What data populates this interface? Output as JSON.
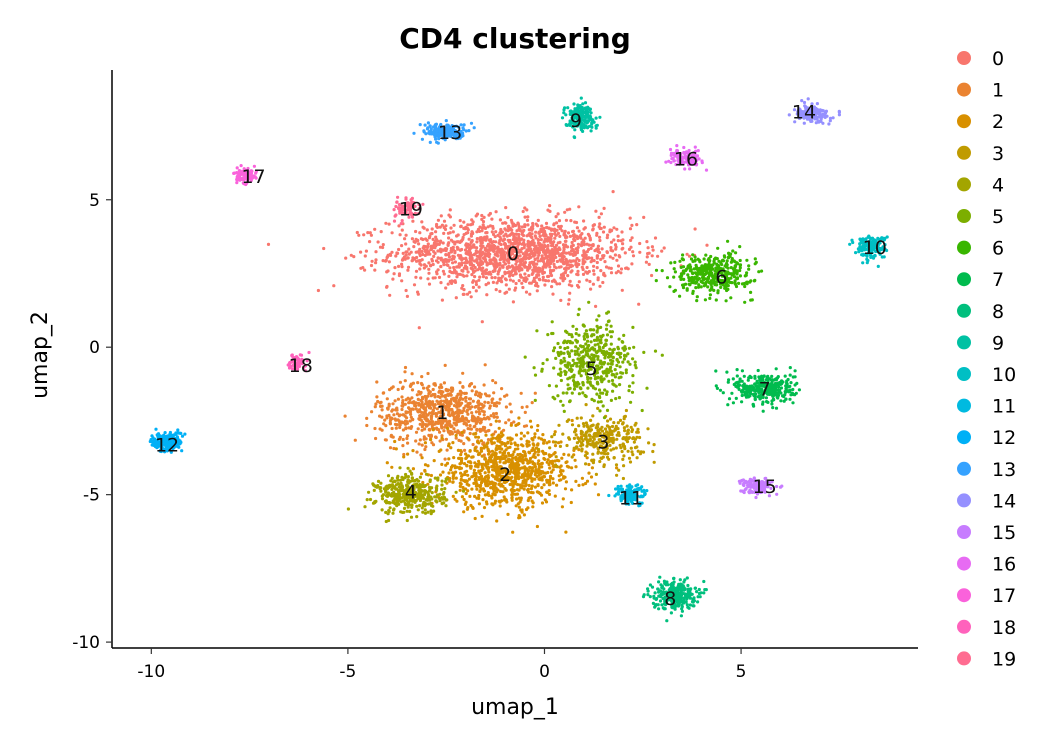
{
  "chart_data": {
    "type": "scatter",
    "title": "CD4 clustering",
    "xlabel": "umap_1",
    "ylabel": "umap_2",
    "xlim": [
      -11,
      9.5
    ],
    "ylim": [
      -10.2,
      9.4
    ],
    "x_ticks": [
      -10,
      -5,
      0,
      5
    ],
    "y_ticks": [
      -10,
      -5,
      0,
      5
    ],
    "grid": false,
    "legend": "right",
    "series": [
      {
        "name": "0",
        "color": "#F8766D",
        "center": [
          -0.8,
          3.2
        ],
        "label_pos": [
          -0.8,
          3.2
        ],
        "spread": [
          2.8,
          1.1
        ],
        "n": 1600
      },
      {
        "name": "1",
        "color": "#EA8331",
        "center": [
          -2.6,
          -2.2
        ],
        "label_pos": [
          -2.6,
          -2.2
        ],
        "spread": [
          1.5,
          1.0
        ],
        "n": 700
      },
      {
        "name": "2",
        "color": "#D89000",
        "center": [
          -1.0,
          -4.2
        ],
        "label_pos": [
          -1.0,
          -4.3
        ],
        "spread": [
          1.7,
          1.1
        ],
        "n": 900
      },
      {
        "name": "3",
        "color": "#C09B00",
        "center": [
          1.5,
          -3.1
        ],
        "label_pos": [
          1.5,
          -3.2
        ],
        "spread": [
          0.9,
          0.7
        ],
        "n": 280
      },
      {
        "name": "4",
        "color": "#A3A500",
        "center": [
          -3.4,
          -5.0
        ],
        "label_pos": [
          -3.4,
          -4.9
        ],
        "spread": [
          0.8,
          0.6
        ],
        "n": 380
      },
      {
        "name": "5",
        "color": "#7CAE00",
        "center": [
          1.2,
          -0.5
        ],
        "label_pos": [
          1.2,
          -0.7
        ],
        "spread": [
          1.0,
          1.2
        ],
        "n": 450
      },
      {
        "name": "6",
        "color": "#39B600",
        "center": [
          4.3,
          2.5
        ],
        "label_pos": [
          4.5,
          2.4
        ],
        "spread": [
          0.9,
          0.6
        ],
        "n": 380
      },
      {
        "name": "7",
        "color": "#00BB4E",
        "center": [
          5.6,
          -1.4
        ],
        "label_pos": [
          5.6,
          -1.4
        ],
        "spread": [
          0.7,
          0.5
        ],
        "n": 320
      },
      {
        "name": "8",
        "color": "#00BF7D",
        "center": [
          3.3,
          -8.4
        ],
        "label_pos": [
          3.2,
          -8.5
        ],
        "spread": [
          0.5,
          0.45
        ],
        "n": 260
      },
      {
        "name": "9",
        "color": "#00C1A3",
        "center": [
          0.9,
          7.8
        ],
        "label_pos": [
          0.8,
          7.7
        ],
        "spread": [
          0.35,
          0.4
        ],
        "n": 180
      },
      {
        "name": "10",
        "color": "#00BFC4",
        "center": [
          8.3,
          3.4
        ],
        "label_pos": [
          8.4,
          3.4
        ],
        "spread": [
          0.35,
          0.35
        ],
        "n": 160
      },
      {
        "name": "11",
        "color": "#00BAE0",
        "center": [
          2.2,
          -5.0
        ],
        "label_pos": [
          2.2,
          -5.1
        ],
        "spread": [
          0.35,
          0.3
        ],
        "n": 140
      },
      {
        "name": "12",
        "color": "#00B0F6",
        "center": [
          -9.6,
          -3.2
        ],
        "label_pos": [
          -9.6,
          -3.3
        ],
        "spread": [
          0.35,
          0.3
        ],
        "n": 200
      },
      {
        "name": "13",
        "color": "#35A2FF",
        "center": [
          -2.5,
          7.3
        ],
        "label_pos": [
          -2.4,
          7.3
        ],
        "spread": [
          0.5,
          0.25
        ],
        "n": 200
      },
      {
        "name": "14",
        "color": "#9590FF",
        "center": [
          6.8,
          7.9
        ],
        "label_pos": [
          6.6,
          8.0
        ],
        "spread": [
          0.4,
          0.25
        ],
        "n": 170
      },
      {
        "name": "15",
        "color": "#C77CFF",
        "center": [
          5.4,
          -4.7
        ],
        "label_pos": [
          5.6,
          -4.7
        ],
        "spread": [
          0.35,
          0.25
        ],
        "n": 130
      },
      {
        "name": "16",
        "color": "#E76BF3",
        "center": [
          3.6,
          6.4
        ],
        "label_pos": [
          3.6,
          6.4
        ],
        "spread": [
          0.35,
          0.25
        ],
        "n": 130
      },
      {
        "name": "17",
        "color": "#FA62DB",
        "center": [
          -7.6,
          5.8
        ],
        "label_pos": [
          -7.4,
          5.8
        ],
        "spread": [
          0.25,
          0.22
        ],
        "n": 90
      },
      {
        "name": "18",
        "color": "#FF62BC",
        "center": [
          -6.3,
          -0.5
        ],
        "label_pos": [
          -6.2,
          -0.6
        ],
        "spread": [
          0.2,
          0.3
        ],
        "n": 70
      },
      {
        "name": "19",
        "color": "#FF6C91",
        "center": [
          -3.5,
          4.7
        ],
        "label_pos": [
          -3.4,
          4.7
        ],
        "spread": [
          0.3,
          0.3
        ],
        "n": 70
      }
    ]
  }
}
